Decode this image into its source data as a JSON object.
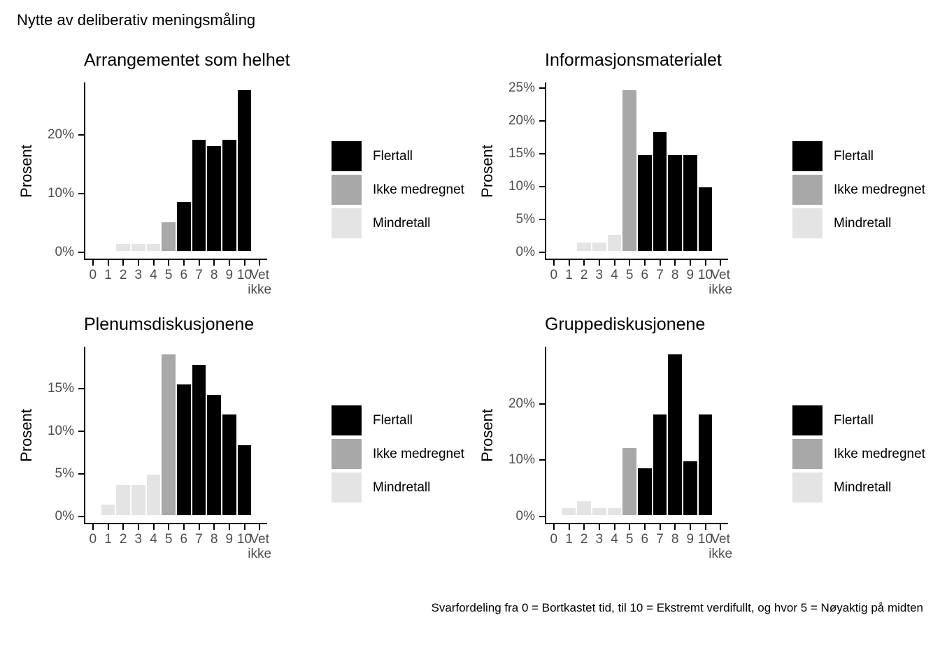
{
  "title": "Nytte av deliberativ meningsmåling",
  "caption": "Svarfordeling fra 0 = Bortkastet tid, til 10 = Ekstremt verdifullt, og hvor 5 = Nøyaktig på midten",
  "colors": {
    "flertall": "#000000",
    "ikke_medregnet": "#a8a8a8",
    "mindretall": "#e4e4e4",
    "axis_text": "#4d4d4d",
    "axis_line": "#000000"
  },
  "legend": {
    "items": [
      {
        "label": "Flertall",
        "color": "#000000"
      },
      {
        "label": "Ikke medregnet",
        "color": "#a8a8a8"
      },
      {
        "label": "Mindretall",
        "color": "#e4e4e4"
      }
    ]
  },
  "chart_data": [
    {
      "type": "bar",
      "title": "Arrangementet som helhet",
      "ylabel": "Prosent",
      "categories": [
        "0",
        "1",
        "2",
        "3",
        "4",
        "5",
        "6",
        "7",
        "8",
        "9",
        "10",
        "Vet ikke"
      ],
      "values": [
        0,
        0,
        1.2,
        1.2,
        1.2,
        4.8,
        8.3,
        19.0,
        17.9,
        19.0,
        27.4,
        0
      ],
      "groups": [
        "Mindretall",
        "Mindretall",
        "Mindretall",
        "Mindretall",
        "Mindretall",
        "Ikke medregnet",
        "Flertall",
        "Flertall",
        "Flertall",
        "Flertall",
        "Flertall",
        null
      ],
      "yticks": [
        0,
        10,
        20
      ],
      "ylim": [
        0,
        28.8
      ],
      "grid": false,
      "legend_position": "right"
    },
    {
      "type": "bar",
      "title": "Informasjonsmaterialet",
      "ylabel": "Prosent",
      "categories": [
        "0",
        "1",
        "2",
        "3",
        "4",
        "5",
        "6",
        "7",
        "8",
        "9",
        "10",
        "Vet ikke"
      ],
      "values": [
        0,
        0,
        1.2,
        1.2,
        2.4,
        24.4,
        14.5,
        18.1,
        14.5,
        14.5,
        9.6,
        0
      ],
      "groups": [
        "Mindretall",
        "Mindretall",
        "Mindretall",
        "Mindretall",
        "Mindretall",
        "Ikke medregnet",
        "Flertall",
        "Flertall",
        "Flertall",
        "Flertall",
        "Flertall",
        null
      ],
      "yticks": [
        0,
        5,
        10,
        15,
        20,
        25
      ],
      "ylim": [
        0,
        25.6
      ],
      "grid": false,
      "legend_position": "right"
    },
    {
      "type": "bar",
      "title": "Plenumsdiskusjonene",
      "ylabel": "Prosent",
      "categories": [
        "0",
        "1",
        "2",
        "3",
        "4",
        "5",
        "6",
        "7",
        "8",
        "9",
        "10",
        "Vet ikke"
      ],
      "values": [
        0,
        1.2,
        3.5,
        3.5,
        4.7,
        18.8,
        15.3,
        17.6,
        14.1,
        11.8,
        8.2,
        0
      ],
      "groups": [
        "Mindretall",
        "Mindretall",
        "Mindretall",
        "Mindretall",
        "Mindretall",
        "Ikke medregnet",
        "Flertall",
        "Flertall",
        "Flertall",
        "Flertall",
        "Flertall",
        null
      ],
      "yticks": [
        0,
        5,
        10,
        15
      ],
      "ylim": [
        0,
        19.7
      ],
      "grid": false,
      "legend_position": "right"
    },
    {
      "type": "bar",
      "title": "Gruppediskusjonene",
      "ylabel": "Prosent",
      "categories": [
        "0",
        "1",
        "2",
        "3",
        "4",
        "5",
        "6",
        "7",
        "8",
        "9",
        "10",
        "Vet ikke"
      ],
      "values": [
        0,
        1.2,
        2.4,
        1.2,
        1.2,
        11.9,
        8.3,
        17.9,
        28.6,
        9.5,
        17.9,
        0
      ],
      "groups": [
        "Mindretall",
        "Mindretall",
        "Mindretall",
        "Mindretall",
        "Mindretall",
        "Ikke medregnet",
        "Flertall",
        "Flertall",
        "Flertall",
        "Flertall",
        "Flertall",
        null
      ],
      "yticks": [
        0,
        10,
        20
      ],
      "ylim": [
        0,
        30.0
      ],
      "grid": false,
      "legend_position": "right"
    }
  ]
}
